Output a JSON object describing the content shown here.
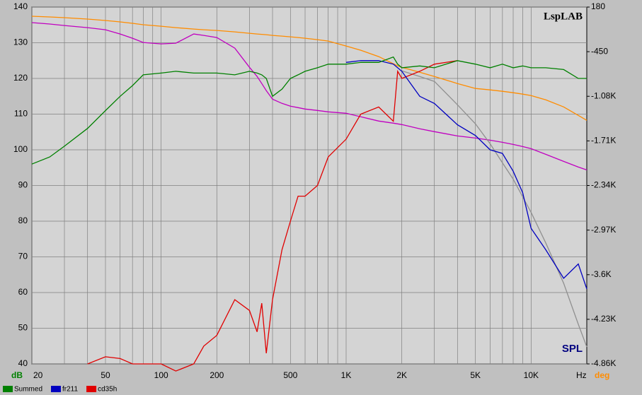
{
  "chart_data": {
    "type": "line",
    "title": "LspLAB",
    "annotation": "SPL",
    "y_label": "dB",
    "x_label": "Hz",
    "y2_label": "deg",
    "log_x": true,
    "grid": true,
    "x": [
      20,
      25,
      30,
      40,
      50,
      60,
      70,
      80,
      100,
      120,
      150,
      170,
      200,
      250,
      300,
      330,
      350,
      370,
      400,
      450,
      500,
      550,
      600,
      700,
      800,
      1000,
      1200,
      1500,
      1800,
      1900,
      2000,
      2500,
      3000,
      4000,
      5000,
      6000,
      7000,
      8000,
      9000,
      10000,
      12000,
      15000,
      18000,
      20000
    ],
    "xlim": [
      20,
      20000
    ],
    "xticks": [
      20,
      50,
      100,
      200,
      500,
      {
        "value": 1000,
        "label": "1K"
      },
      {
        "value": 2000,
        "label": "2K"
      },
      {
        "value": 5000,
        "label": "5K"
      },
      {
        "value": 10000,
        "label": "10K"
      }
    ],
    "x_minor_ticks": [
      30,
      40,
      60,
      70,
      80,
      90,
      300,
      400,
      600,
      700,
      800,
      900,
      3000,
      4000,
      6000,
      7000,
      8000,
      9000
    ],
    "ylim": [
      40,
      140
    ],
    "yticks": [
      40,
      50,
      60,
      70,
      80,
      90,
      100,
      110,
      120,
      130,
      140
    ],
    "y2lim": [
      -4860,
      180
    ],
    "y2ticks": [
      180,
      {
        "value": -450,
        "label": "-450"
      },
      {
        "value": -1080,
        "label": "-1.08K"
      },
      {
        "value": -1710,
        "label": "-1.71K"
      },
      {
        "value": -2340,
        "label": "-2.34K"
      },
      {
        "value": -2970,
        "label": "-2.97K"
      },
      {
        "value": -3600,
        "label": "-3.6K"
      },
      {
        "value": -4230,
        "label": "-4.23K"
      },
      {
        "value": -4860,
        "label": "-4.86K"
      }
    ],
    "series": [
      {
        "color": "#ff8c00",
        "axis": "y2",
        "values": [
          50,
          40,
          30,
          10,
          -10,
          -30,
          -50,
          -70,
          -90,
          -110,
          -130,
          -140,
          -150,
          -170,
          -190,
          -200,
          -205,
          -210,
          -220,
          -230,
          -240,
          -250,
          -260,
          -280,
          -300,
          -370,
          -430,
          -520,
          -620,
          -650,
          -670,
          -740,
          -800,
          -900,
          -970,
          -990,
          -1010,
          -1030,
          -1050,
          -1070,
          -1130,
          -1230,
          -1350,
          -1420
        ]
      },
      {
        "color": "#c000c0",
        "axis": "y2",
        "values": [
          -40,
          -60,
          -80,
          -110,
          -140,
          -200,
          -260,
          -320,
          -340,
          -330,
          -200,
          -220,
          -250,
          -400,
          -670,
          -800,
          -900,
          -1000,
          -1120,
          -1180,
          -1220,
          -1240,
          -1260,
          -1280,
          -1300,
          -1320,
          -1370,
          -1430,
          -1460,
          -1470,
          -1480,
          -1540,
          -1580,
          -1640,
          -1670,
          -1700,
          -1730,
          -1760,
          -1790,
          -1820,
          -1900,
          -2000,
          -2080,
          -2120
        ]
      },
      {
        "color": "#909090",
        "axis": "y2",
        "values": [
          null,
          null,
          null,
          null,
          null,
          null,
          null,
          null,
          null,
          null,
          null,
          null,
          null,
          null,
          null,
          null,
          null,
          null,
          null,
          null,
          null,
          null,
          null,
          null,
          null,
          null,
          null,
          null,
          null,
          null,
          -720,
          -800,
          -870,
          -1200,
          -1470,
          -1750,
          -2020,
          -2250,
          -2500,
          -2720,
          -3150,
          -3720,
          -4300,
          -4620
        ]
      },
      {
        "name": "cd35h",
        "color": "#e00000",
        "values": [
          null,
          null,
          null,
          40,
          42,
          41.5,
          40,
          40,
          40,
          38,
          40,
          45,
          48,
          58,
          55,
          49,
          57,
          43,
          58,
          72,
          80,
          87,
          87,
          90,
          98,
          103,
          110,
          112,
          108,
          122,
          120,
          122,
          124,
          125,
          null,
          null,
          null,
          null,
          null,
          null,
          null,
          null,
          null,
          null
        ]
      },
      {
        "name": "fr211",
        "color": "#0000c0",
        "values": [
          null,
          null,
          null,
          null,
          null,
          null,
          null,
          null,
          null,
          null,
          null,
          null,
          null,
          null,
          null,
          null,
          null,
          null,
          null,
          null,
          null,
          null,
          null,
          null,
          null,
          124.5,
          125,
          125,
          124,
          123,
          122,
          115,
          113,
          107,
          104,
          100,
          99,
          94,
          88,
          78,
          72,
          64,
          68,
          61
        ]
      },
      {
        "name": "Summed",
        "color": "#008000",
        "values": [
          96,
          98,
          101,
          106,
          111,
          115,
          118,
          121,
          121.5,
          122,
          121.5,
          121.5,
          121.5,
          121,
          122,
          121.5,
          121,
          120,
          115,
          117,
          120,
          121,
          122,
          123,
          124,
          124,
          124.5,
          124.5,
          126,
          124,
          123,
          123.5,
          123,
          125,
          124,
          123,
          124,
          123,
          123.5,
          123,
          123,
          122.5,
          120,
          120
        ]
      }
    ]
  }
}
